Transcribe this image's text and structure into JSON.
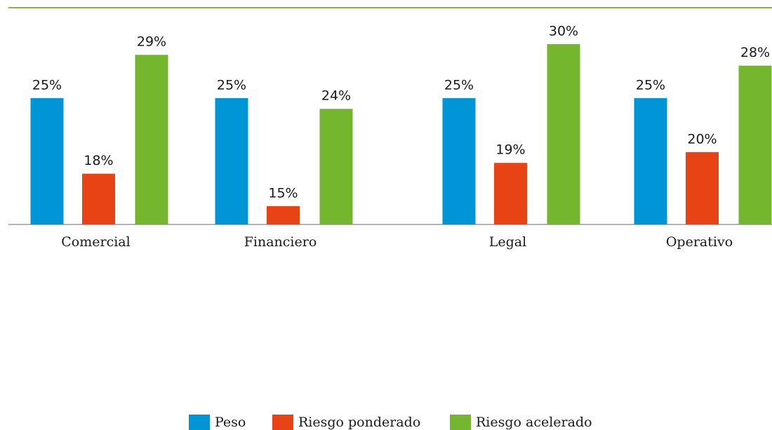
{
  "chart_data": {
    "type": "bar",
    "categories": [
      "Comercial",
      "Financiero",
      "Legal",
      "Operativo"
    ],
    "series": [
      {
        "name": "Peso",
        "color": "#0095d6",
        "values": [
          25,
          25,
          25,
          25
        ],
        "value_labels": [
          "25%",
          "25%",
          "25%",
          "25%"
        ]
      },
      {
        "name": "Riesgo ponderado",
        "color": "#e84315",
        "values": [
          18,
          15,
          19,
          20
        ],
        "value_labels": [
          "18%",
          "15%",
          "19%",
          "20%"
        ]
      },
      {
        "name": "Riesgo acelerado",
        "color": "#74b72e",
        "values": [
          29,
          24,
          30,
          28
        ],
        "value_labels": [
          "29%",
          "24%",
          "30%",
          "28%"
        ]
      }
    ],
    "ylim": [
      13.3,
      32
    ],
    "legend": "bottom"
  }
}
